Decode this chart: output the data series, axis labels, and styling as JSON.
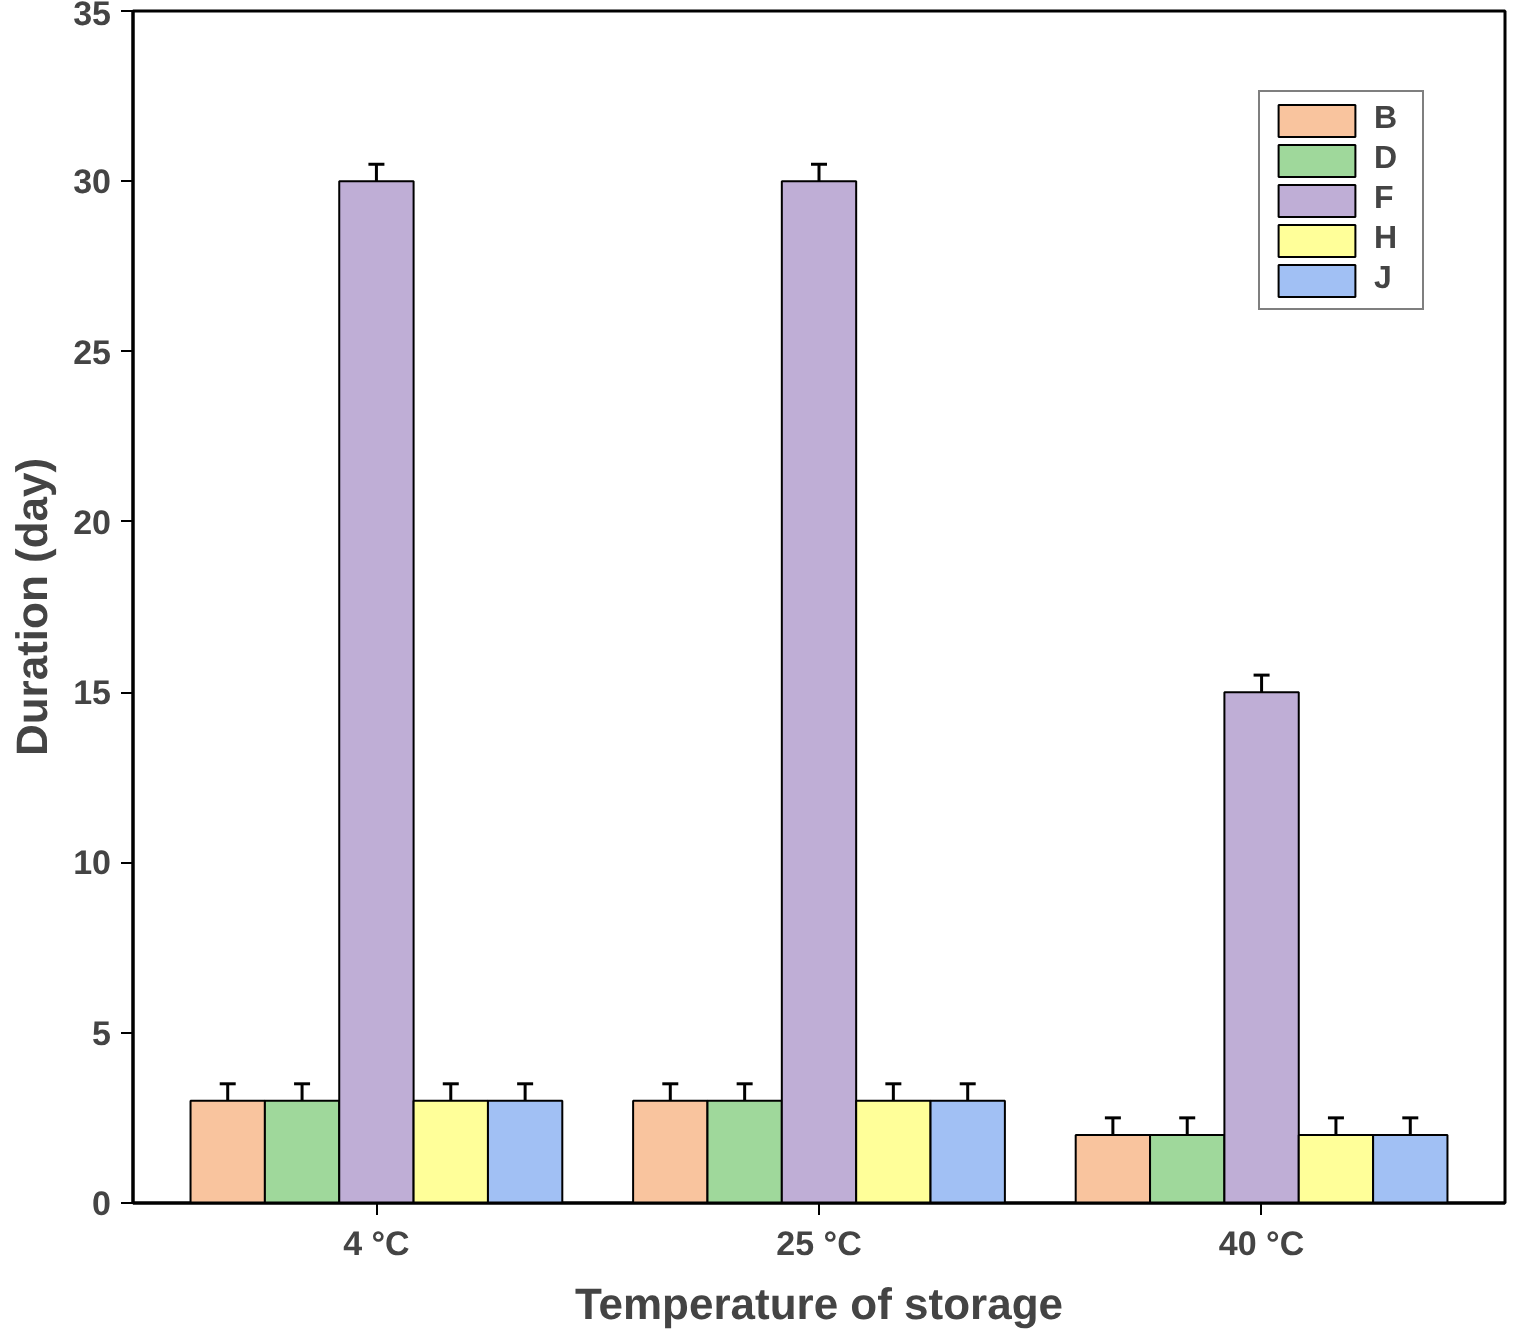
{
  "chart_data": {
    "type": "bar",
    "xlabel": "Temperature of storage",
    "ylabel": "Duration (day)",
    "categories": [
      "4 °C",
      "25 °C",
      "40 °C"
    ],
    "series": [
      {
        "name": "B",
        "color": "#f9c49e",
        "values": [
          3,
          3,
          2
        ],
        "errors": [
          0.5,
          0.5,
          0.5
        ]
      },
      {
        "name": "D",
        "color": "#9fd89b",
        "values": [
          3,
          3,
          2
        ],
        "errors": [
          0.5,
          0.5,
          0.5
        ]
      },
      {
        "name": "F",
        "color": "#bfaed6",
        "values": [
          30,
          30,
          15
        ],
        "errors": [
          0.5,
          0.5,
          0.5
        ]
      },
      {
        "name": "H",
        "color": "#ffff99",
        "values": [
          3,
          3,
          2
        ],
        "errors": [
          0.5,
          0.5,
          0.5
        ]
      },
      {
        "name": "J",
        "color": "#a1c0f4",
        "values": [
          3,
          3,
          2
        ],
        "errors": [
          0.5,
          0.5,
          0.5
        ]
      }
    ],
    "ylim": [
      0,
      35
    ],
    "yticks": [
      0,
      5,
      10,
      15,
      20,
      25,
      30,
      35
    ],
    "grid": false,
    "legend": "top right"
  }
}
